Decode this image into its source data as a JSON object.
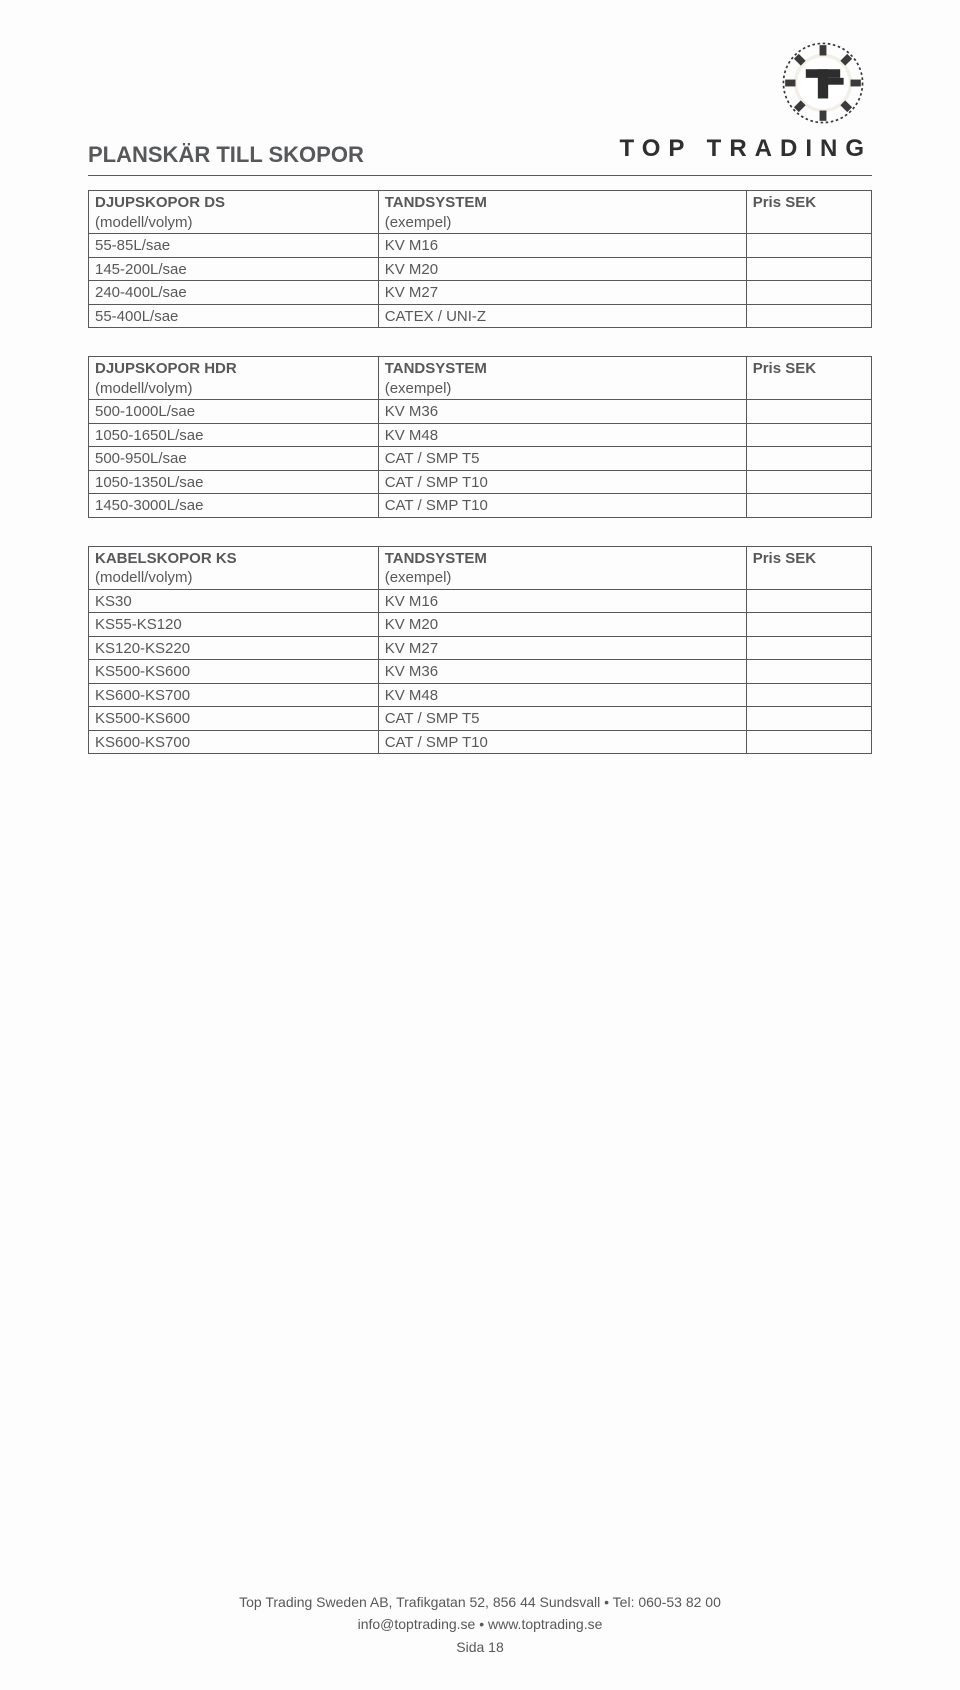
{
  "brand": "TOP TRADING",
  "page_title": "PLANSKÄR TILL SKOPOR",
  "tables": [
    {
      "header": {
        "c1": "DJUPSKOPOR DS",
        "c2": "TANDSYSTEM",
        "c3": "Pris SEK"
      },
      "sub": {
        "c1": "(modell/volym)",
        "c2": "(exempel)",
        "c3": ""
      },
      "rows": [
        {
          "c1": "55-85L/sae",
          "c2": "KV M16"
        },
        {
          "c1": "145-200L/sae",
          "c2": "KV M20"
        },
        {
          "c1": "240-400L/sae",
          "c2": "KV M27"
        },
        {
          "c1": "55-400L/sae",
          "c2": "CATEX / UNI-Z"
        }
      ]
    },
    {
      "header": {
        "c1": "DJUPSKOPOR HDR",
        "c2": "TANDSYSTEM",
        "c3": "Pris SEK"
      },
      "sub": {
        "c1": "(modell/volym)",
        "c2": "(exempel)",
        "c3": ""
      },
      "rows": [
        {
          "c1": "500-1000L/sae",
          "c2": "KV M36"
        },
        {
          "c1": "1050-1650L/sae",
          "c2": "KV M48"
        },
        {
          "c1": "500-950L/sae",
          "c2": "CAT / SMP T5"
        },
        {
          "c1": "1050-1350L/sae",
          "c2": "CAT / SMP T10"
        },
        {
          "c1": "1450-3000L/sae",
          "c2": "CAT / SMP T10"
        }
      ]
    },
    {
      "header": {
        "c1": "KABELSKOPOR KS",
        "c2": "TANDSYSTEM",
        "c3": "Pris SEK"
      },
      "sub": {
        "c1": "(modell/volym)",
        "c2": "(exempel)",
        "c3": ""
      },
      "rows": [
        {
          "c1": "KS30",
          "c2": "KV M16"
        },
        {
          "c1": "KS55-KS120",
          "c2": "KV M20"
        },
        {
          "c1": "KS120-KS220",
          "c2": "KV M27"
        },
        {
          "c1": "KS500-KS600",
          "c2": "KV M36"
        },
        {
          "c1": "KS600-KS700",
          "c2": "KV M48"
        },
        {
          "c1": "KS500-KS600",
          "c2": "CAT / SMP T5"
        },
        {
          "c1": "KS600-KS700",
          "c2": "CAT / SMP T10"
        }
      ]
    }
  ],
  "footer": {
    "line1": "Top Trading Sweden AB, Trafikgatan 52, 856 44 Sundsvall • Tel: 060-53 82 00",
    "line2": "info@toptrading.se • www.toptrading.se",
    "line3": "Sida 18"
  }
}
